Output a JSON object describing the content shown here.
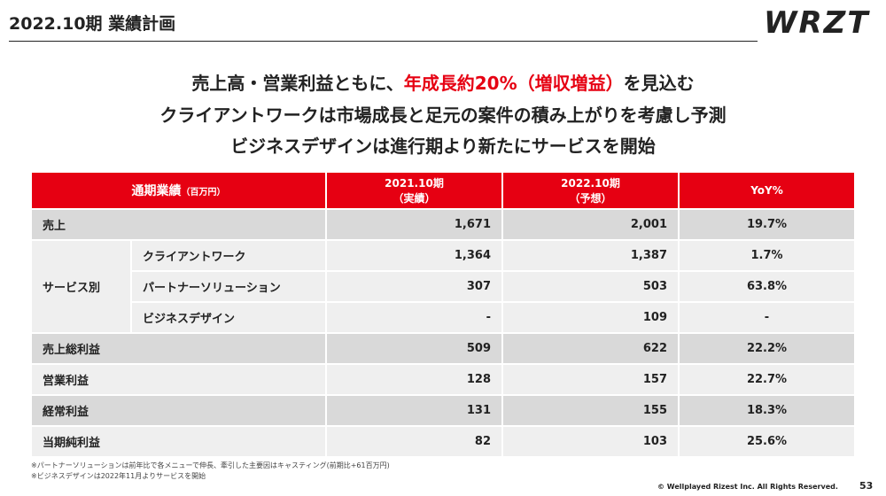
{
  "header": {
    "title": "2022.10期 業績計画",
    "logo": "WRZT"
  },
  "headline": {
    "first": {
      "before": "売上高・営業利益ともに、",
      "highlight": "年成長約20%（増収増益）",
      "after": "を見込む"
    },
    "lines": [
      "クライアントワークは市場成長と足元の案件の積み上がりを考慮し予測",
      "ビジネスデザインは進行期より新たにサービスを開始"
    ],
    "highlight_color": "#e60012"
  },
  "table": {
    "header": {
      "item": "通期業績",
      "unit": "（百万円）",
      "columns": [
        [
          "2021.10期",
          "（実績）"
        ],
        [
          "2022.10期",
          "（予想）"
        ],
        [
          "YoY%"
        ]
      ]
    },
    "rows": [
      {
        "label": "売上",
        "cells": [
          "1,671",
          "2,001",
          "19.7%"
        ]
      },
      {
        "group": "サービス別",
        "items": [
          {
            "label": "クライアントワーク",
            "cells": [
              "1,364",
              "1,387",
              "1.7%"
            ]
          },
          {
            "label": "パートナーソリューション",
            "cells": [
              "307",
              "503",
              "63.8%"
            ]
          },
          {
            "label": "ビジネスデザイン",
            "cells": [
              "-",
              "109",
              "-"
            ]
          }
        ]
      },
      {
        "label": "売上総利益",
        "cells": [
          "509",
          "622",
          "22.2%"
        ]
      },
      {
        "label": "営業利益",
        "cells": [
          "128",
          "157",
          "22.7%"
        ]
      },
      {
        "label": "経常利益",
        "cells": [
          "131",
          "155",
          "18.3%"
        ]
      },
      {
        "label": "当期純利益",
        "cells": [
          "82",
          "103",
          "25.6%"
        ]
      }
    ]
  },
  "footnotes": [
    "※パートナーソリューションは前年比で各メニューで伸長、牽引した主要因はキャスティング(前期比+61百万円)",
    "※ビジネスデザインは2022年11月よりサービスを開始"
  ],
  "footer": {
    "copyright": "© Wellplayed Rizest Inc. All Rights Reserved.",
    "page": "53"
  }
}
